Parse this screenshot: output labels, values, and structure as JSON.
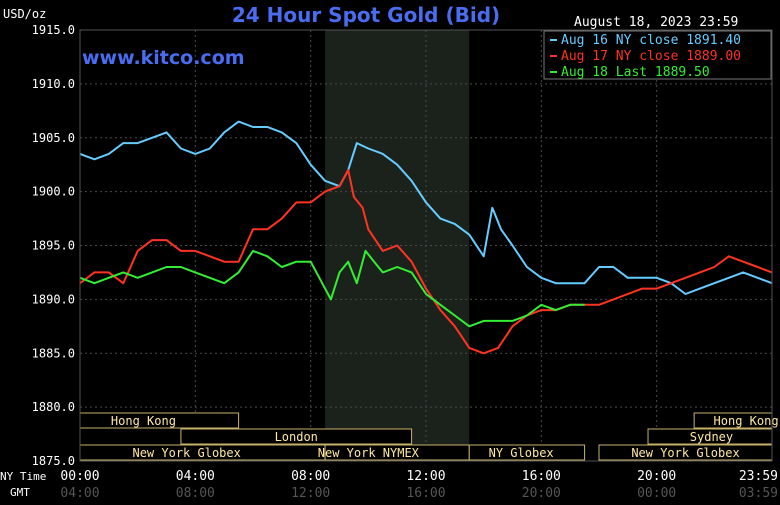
{
  "chart_data": {
    "type": "line",
    "title": "24 Hour Spot Gold (Bid)",
    "watermark": "www.kitco.com",
    "date_label": "August 18, 2023 23:59",
    "y_unit": "USD/oz",
    "ylim": [
      1875,
      1915
    ],
    "y_ticks": [
      "1915.0",
      "1910.0",
      "1905.0",
      "1900.0",
      "1895.0",
      "1890.0",
      "1885.0",
      "1880.0",
      "1875.0"
    ],
    "x_row_labels": {
      "ny": "NY Time",
      "gmt": "GMT"
    },
    "x_ticks_ny": [
      "00:00",
      "04:00",
      "08:00",
      "12:00",
      "16:00",
      "20:00",
      "23:59"
    ],
    "x_ticks_gmt": [
      "04:00",
      "08:00",
      "12:00",
      "16:00",
      "20:00",
      "00:00",
      "03:59"
    ],
    "xlim_hours": [
      0,
      24
    ],
    "grid": true,
    "legend_position": "top-right",
    "shaded_session": [
      8.5,
      13.5
    ],
    "market_sessions": [
      {
        "name": "Hong Kong",
        "start": 0,
        "end": 5.5,
        "row": 0,
        "label_at": 2.2
      },
      {
        "name": "London",
        "start": 3.5,
        "end": 11.5,
        "row": 1,
        "label_at": 7.5
      },
      {
        "name": "New York Globex",
        "start": 0,
        "end": 8.5,
        "row": 2,
        "label_at": 3.7
      },
      {
        "name": "New York NYMEX",
        "start": 8.5,
        "end": 13.5,
        "row": 2,
        "label_at": 10.0
      },
      {
        "name": "NY Globex",
        "start": 13.5,
        "end": 17.5,
        "row": 2,
        "label_at": 15.3
      },
      {
        "name": "Hong Kong",
        "start": 21.3,
        "end": 24,
        "row": 0,
        "label_at": 23.1
      },
      {
        "name": "Sydney",
        "start": 19.7,
        "end": 24,
        "row": 1,
        "label_at": 21.9
      },
      {
        "name": "New York Globex",
        "start": 18.0,
        "end": 24,
        "row": 2,
        "label_at": 21.0
      }
    ],
    "series": [
      {
        "name": "Aug 16 NY close 1891.40",
        "color": "#66ccff",
        "x": [
          0,
          0.5,
          1,
          1.5,
          2,
          2.5,
          3,
          3.5,
          4,
          4.5,
          5,
          5.5,
          6,
          6.5,
          7,
          7.5,
          8,
          8.5,
          9,
          9.3,
          9.6,
          10,
          10.5,
          11,
          11.5,
          12,
          12.5,
          13,
          13.5,
          14,
          14.3,
          14.6,
          15,
          15.5,
          16,
          16.5,
          17,
          17.5,
          18,
          18.5,
          19,
          19.5,
          20,
          20.5,
          21,
          21.5,
          22,
          22.5,
          23,
          23.5,
          24
        ],
        "y": [
          1903.5,
          1903.0,
          1903.5,
          1904.5,
          1904.5,
          1905.0,
          1905.5,
          1904.0,
          1903.5,
          1904.0,
          1905.5,
          1906.5,
          1906.0,
          1906.0,
          1905.5,
          1904.5,
          1902.5,
          1901.0,
          1900.5,
          1902.0,
          1904.5,
          1904.0,
          1903.5,
          1902.5,
          1901.0,
          1899.0,
          1897.5,
          1897.0,
          1896.0,
          1894.0,
          1898.5,
          1896.5,
          1895.0,
          1893.0,
          1892.0,
          1891.5,
          1891.5,
          1891.5,
          1893.0,
          1893.0,
          1892.0,
          1892.0,
          1892.0,
          1891.5,
          1890.5,
          1891.0,
          1891.5,
          1892.0,
          1892.5,
          1892.0,
          1891.5
        ]
      },
      {
        "name": "Aug 17 NY close 1889.00",
        "color": "#ff3322",
        "x": [
          0,
          0.5,
          1,
          1.5,
          2,
          2.5,
          3,
          3.5,
          4,
          4.5,
          5,
          5.5,
          6,
          6.5,
          7,
          7.5,
          8,
          8.5,
          9,
          9.3,
          9.5,
          9.8,
          10,
          10.5,
          11,
          11.5,
          12,
          12.5,
          13,
          13.5,
          14,
          14.5,
          15,
          15.5,
          16,
          16.5,
          17,
          17.5,
          18,
          18.5,
          19,
          19.5,
          20,
          20.5,
          21,
          21.5,
          22,
          22.5,
          23,
          23.5,
          24
        ],
        "y": [
          1891.5,
          1892.5,
          1892.5,
          1891.5,
          1894.5,
          1895.5,
          1895.5,
          1894.5,
          1894.5,
          1894.0,
          1893.5,
          1893.5,
          1896.5,
          1896.5,
          1897.5,
          1899.0,
          1899.0,
          1900.0,
          1900.5,
          1902.0,
          1899.5,
          1898.5,
          1896.5,
          1894.5,
          1895.0,
          1893.5,
          1891.0,
          1889.0,
          1887.5,
          1885.5,
          1885.0,
          1885.5,
          1887.5,
          1888.5,
          1889.0,
          1889.0,
          1889.5,
          1889.5,
          1889.5,
          1890.0,
          1890.5,
          1891.0,
          1891.0,
          1891.5,
          1892.0,
          1892.5,
          1893.0,
          1894.0,
          1893.5,
          1893.0,
          1892.5
        ]
      },
      {
        "name": "Aug 18 Last 1889.50",
        "color": "#33ee33",
        "x": [
          0,
          0.5,
          1,
          1.5,
          2,
          2.5,
          3,
          3.5,
          4,
          4.5,
          5,
          5.5,
          6,
          6.5,
          7,
          7.5,
          8,
          8.4,
          8.7,
          9,
          9.3,
          9.6,
          9.9,
          10.2,
          10.5,
          11,
          11.5,
          12,
          12.5,
          13,
          13.5,
          14,
          14.5,
          15,
          15.5,
          16,
          16.5,
          17,
          17.5
        ],
        "y": [
          1892.0,
          1891.5,
          1892.0,
          1892.5,
          1892.0,
          1892.5,
          1893.0,
          1893.0,
          1892.5,
          1892.0,
          1891.5,
          1892.5,
          1894.5,
          1894.0,
          1893.0,
          1893.5,
          1893.5,
          1891.5,
          1890.0,
          1892.5,
          1893.5,
          1891.5,
          1894.5,
          1893.5,
          1892.5,
          1893.0,
          1892.5,
          1890.5,
          1889.5,
          1888.5,
          1887.5,
          1888.0,
          1888.0,
          1888.0,
          1888.5,
          1889.5,
          1889.0,
          1889.5,
          1889.5
        ]
      }
    ]
  }
}
